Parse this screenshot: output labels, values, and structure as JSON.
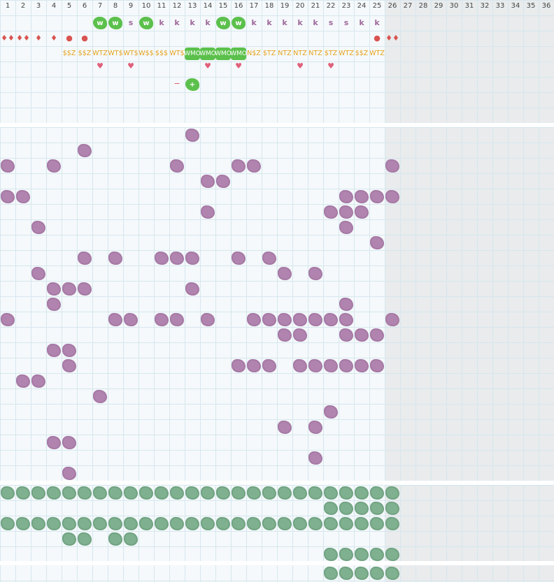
{
  "columns": [
    "1",
    "2",
    "3",
    "4",
    "5",
    "6",
    "7",
    "8",
    "9",
    "10",
    "11",
    "12",
    "13",
    "14",
    "15",
    "16",
    "17",
    "18",
    "19",
    "20",
    "21",
    "22",
    "23",
    "24",
    "25",
    "26",
    "27",
    "28",
    "29",
    "30",
    "31",
    "32",
    "33",
    "34",
    "35",
    "36"
  ],
  "icon_names": {
    "w": "w-badge-icon",
    "drop": "drop-icon",
    "dot": "dot-icon",
    "heart": "heart-icon",
    "minus": "minus-icon",
    "plus": "plus-icon",
    "purple_blob": "purple-blob-icon",
    "green_blob": "green-blob-icon"
  },
  "colors": {
    "purple": "#b084ae",
    "green": "#7fb08f",
    "badge_green": "#5cc04c",
    "gold": "#e6a21c",
    "red": "#d9534f",
    "pink": "#e0607a"
  },
  "row1_w_badges": [
    {
      "col": 7,
      "text": "w"
    },
    {
      "col": 8,
      "text": "w"
    },
    {
      "col": 10,
      "text": "w"
    },
    {
      "col": 15,
      "text": "w"
    },
    {
      "col": 16,
      "text": "w"
    }
  ],
  "row1_letters": [
    {
      "col": 9,
      "text": "s"
    },
    {
      "col": 11,
      "text": "k"
    },
    {
      "col": 12,
      "text": "k"
    },
    {
      "col": 13,
      "text": "k"
    },
    {
      "col": 14,
      "text": "k"
    },
    {
      "col": 17,
      "text": "k"
    },
    {
      "col": 18,
      "text": "k"
    },
    {
      "col": 19,
      "text": "k"
    },
    {
      "col": 20,
      "text": "k"
    },
    {
      "col": 21,
      "text": "k"
    },
    {
      "col": 22,
      "text": "s"
    },
    {
      "col": 23,
      "text": "s"
    },
    {
      "col": 24,
      "text": "k"
    },
    {
      "col": 25,
      "text": "k"
    }
  ],
  "row2_marks": [
    {
      "col": 1,
      "text": "♦♦"
    },
    {
      "col": 2,
      "text": "♦♦"
    },
    {
      "col": 3,
      "text": "♦"
    },
    {
      "col": 4,
      "text": "♦"
    },
    {
      "col": 5,
      "text": "●"
    },
    {
      "col": 6,
      "text": "●"
    },
    {
      "col": 25,
      "text": "●"
    },
    {
      "col": 26,
      "text": "♦♦"
    }
  ],
  "row3_gold": [
    {
      "col": 5,
      "text": "$$Z"
    },
    {
      "col": 6,
      "text": "$$Z"
    },
    {
      "col": 7,
      "text": "WTZ"
    },
    {
      "col": 8,
      "text": "WT$"
    },
    {
      "col": 9,
      "text": "WT$"
    },
    {
      "col": 10,
      "text": "W$$"
    },
    {
      "col": 11,
      "text": "$$$"
    },
    {
      "col": 12,
      "text": "WT$"
    },
    {
      "col": 17,
      "text": "N$Z"
    },
    {
      "col": 18,
      "text": "$TZ"
    },
    {
      "col": 19,
      "text": "NTZ"
    },
    {
      "col": 20,
      "text": "NTZ"
    },
    {
      "col": 21,
      "text": "NTZ"
    },
    {
      "col": 22,
      "text": "$TZ"
    },
    {
      "col": 23,
      "text": "WTZ"
    },
    {
      "col": 24,
      "text": "$$Z"
    },
    {
      "col": 25,
      "text": "WTZ"
    }
  ],
  "row3_badges": [
    {
      "col": 13,
      "text": "WMO"
    },
    {
      "col": 14,
      "text": "WMO"
    },
    {
      "col": 15,
      "text": "WMO"
    },
    {
      "col": 16,
      "text": "WMO"
    }
  ],
  "row4_hearts": [
    7,
    9,
    14,
    16,
    20,
    22
  ],
  "row5_controls": {
    "minus": "−",
    "plus": "+",
    "minus_col": 12,
    "plus_col": 13
  },
  "purple_cells": [
    [
      13,
      1
    ],
    [
      6,
      2
    ],
    [
      1,
      3
    ],
    [
      4,
      3
    ],
    [
      12,
      3
    ],
    [
      16,
      3
    ],
    [
      17,
      3
    ],
    [
      26,
      3
    ],
    [
      14,
      4
    ],
    [
      15,
      4
    ],
    [
      1,
      5
    ],
    [
      2,
      5
    ],
    [
      23,
      5
    ],
    [
      24,
      5
    ],
    [
      25,
      5
    ],
    [
      26,
      5
    ],
    [
      14,
      6
    ],
    [
      22,
      6
    ],
    [
      23,
      6
    ],
    [
      24,
      6
    ],
    [
      3,
      7
    ],
    [
      23,
      7
    ],
    [
      25,
      8
    ],
    [
      6,
      9
    ],
    [
      8,
      9
    ],
    [
      11,
      9
    ],
    [
      12,
      9
    ],
    [
      13,
      9
    ],
    [
      16,
      9
    ],
    [
      18,
      9
    ],
    [
      3,
      10
    ],
    [
      19,
      10
    ],
    [
      21,
      10
    ],
    [
      4,
      11
    ],
    [
      5,
      11
    ],
    [
      6,
      11
    ],
    [
      13,
      11
    ],
    [
      4,
      12
    ],
    [
      23,
      12
    ],
    [
      1,
      13
    ],
    [
      8,
      13
    ],
    [
      9,
      13
    ],
    [
      11,
      13
    ],
    [
      12,
      13
    ],
    [
      14,
      13
    ],
    [
      17,
      13
    ],
    [
      18,
      13
    ],
    [
      19,
      13
    ],
    [
      20,
      13
    ],
    [
      21,
      13
    ],
    [
      22,
      13
    ],
    [
      23,
      13
    ],
    [
      26,
      13
    ],
    [
      19,
      14
    ],
    [
      20,
      14
    ],
    [
      23,
      14
    ],
    [
      24,
      14
    ],
    [
      25,
      14
    ],
    [
      4,
      15
    ],
    [
      5,
      15
    ],
    [
      5,
      16
    ],
    [
      16,
      16
    ],
    [
      17,
      16
    ],
    [
      18,
      16
    ],
    [
      20,
      16
    ],
    [
      21,
      16
    ],
    [
      22,
      16
    ],
    [
      23,
      16
    ],
    [
      24,
      16
    ],
    [
      25,
      16
    ],
    [
      2,
      17
    ],
    [
      3,
      17
    ],
    [
      7,
      18
    ],
    [
      22,
      19
    ],
    [
      19,
      20
    ],
    [
      21,
      20
    ],
    [
      4,
      21
    ],
    [
      5,
      21
    ],
    [
      21,
      22
    ],
    [
      5,
      23
    ]
  ],
  "green_rows": [
    {
      "row": 0,
      "cols": [
        1,
        2,
        3,
        4,
        5,
        6,
        7,
        8,
        9,
        10,
        11,
        12,
        13,
        14,
        15,
        16,
        17,
        18,
        19,
        20,
        21,
        22,
        23,
        24,
        25,
        26
      ]
    },
    {
      "row": 1,
      "cols": [
        22,
        23,
        24,
        25,
        26
      ]
    },
    {
      "row": 2,
      "cols": [
        1,
        2,
        3,
        4,
        5,
        6,
        7,
        8,
        9,
        10,
        11,
        12,
        13,
        14,
        15,
        16,
        17,
        18,
        19,
        20,
        21,
        22,
        23,
        24,
        25,
        26
      ]
    },
    {
      "row": 3,
      "cols": [
        5,
        6,
        8,
        9
      ]
    },
    {
      "row": 4,
      "cols": [
        22,
        23,
        24,
        25,
        26
      ]
    },
    {
      "row": 5,
      "cols": [
        22,
        23,
        24,
        25,
        26
      ]
    }
  ]
}
